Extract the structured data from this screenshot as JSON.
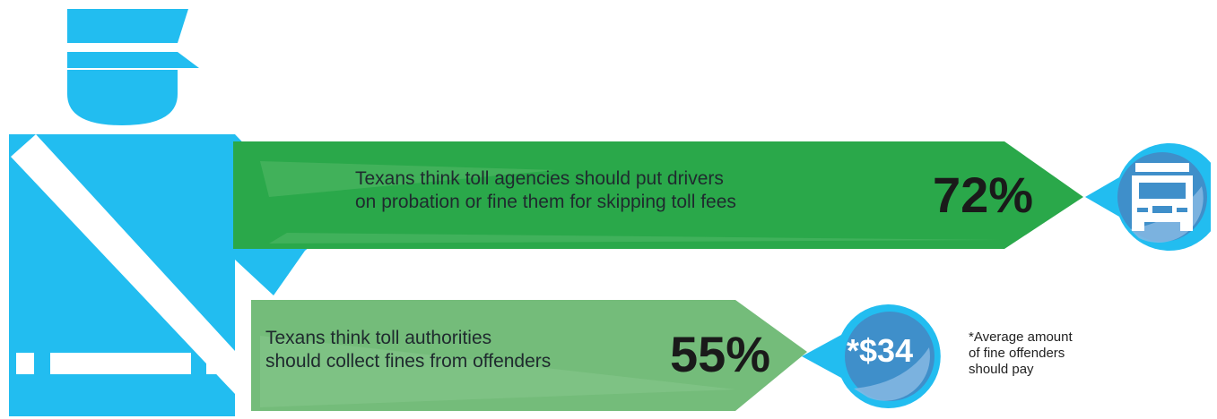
{
  "stats": [
    {
      "text_line1": "Texans think toll agencies should put drivers",
      "text_line2": "on probation or fine them for skipping toll fees",
      "percent": "72%",
      "value": 72,
      "icon": "police-car-icon"
    },
    {
      "text_line1": "Texans think toll authorities",
      "text_line2": "should collect fines from offenders",
      "percent": "55%",
      "value": 55,
      "badge_value": "*$34"
    }
  ],
  "footnote": {
    "line1": "*Average amount",
    "line2": "of fine offenders",
    "line3": "should pay"
  },
  "colors": {
    "officer_blue": "#22bdf0",
    "dark_green": "#2aa84a",
    "light_green": "#74bc7a",
    "badge_blue": "#3f8fca",
    "badge_light": "#86b9e3"
  }
}
